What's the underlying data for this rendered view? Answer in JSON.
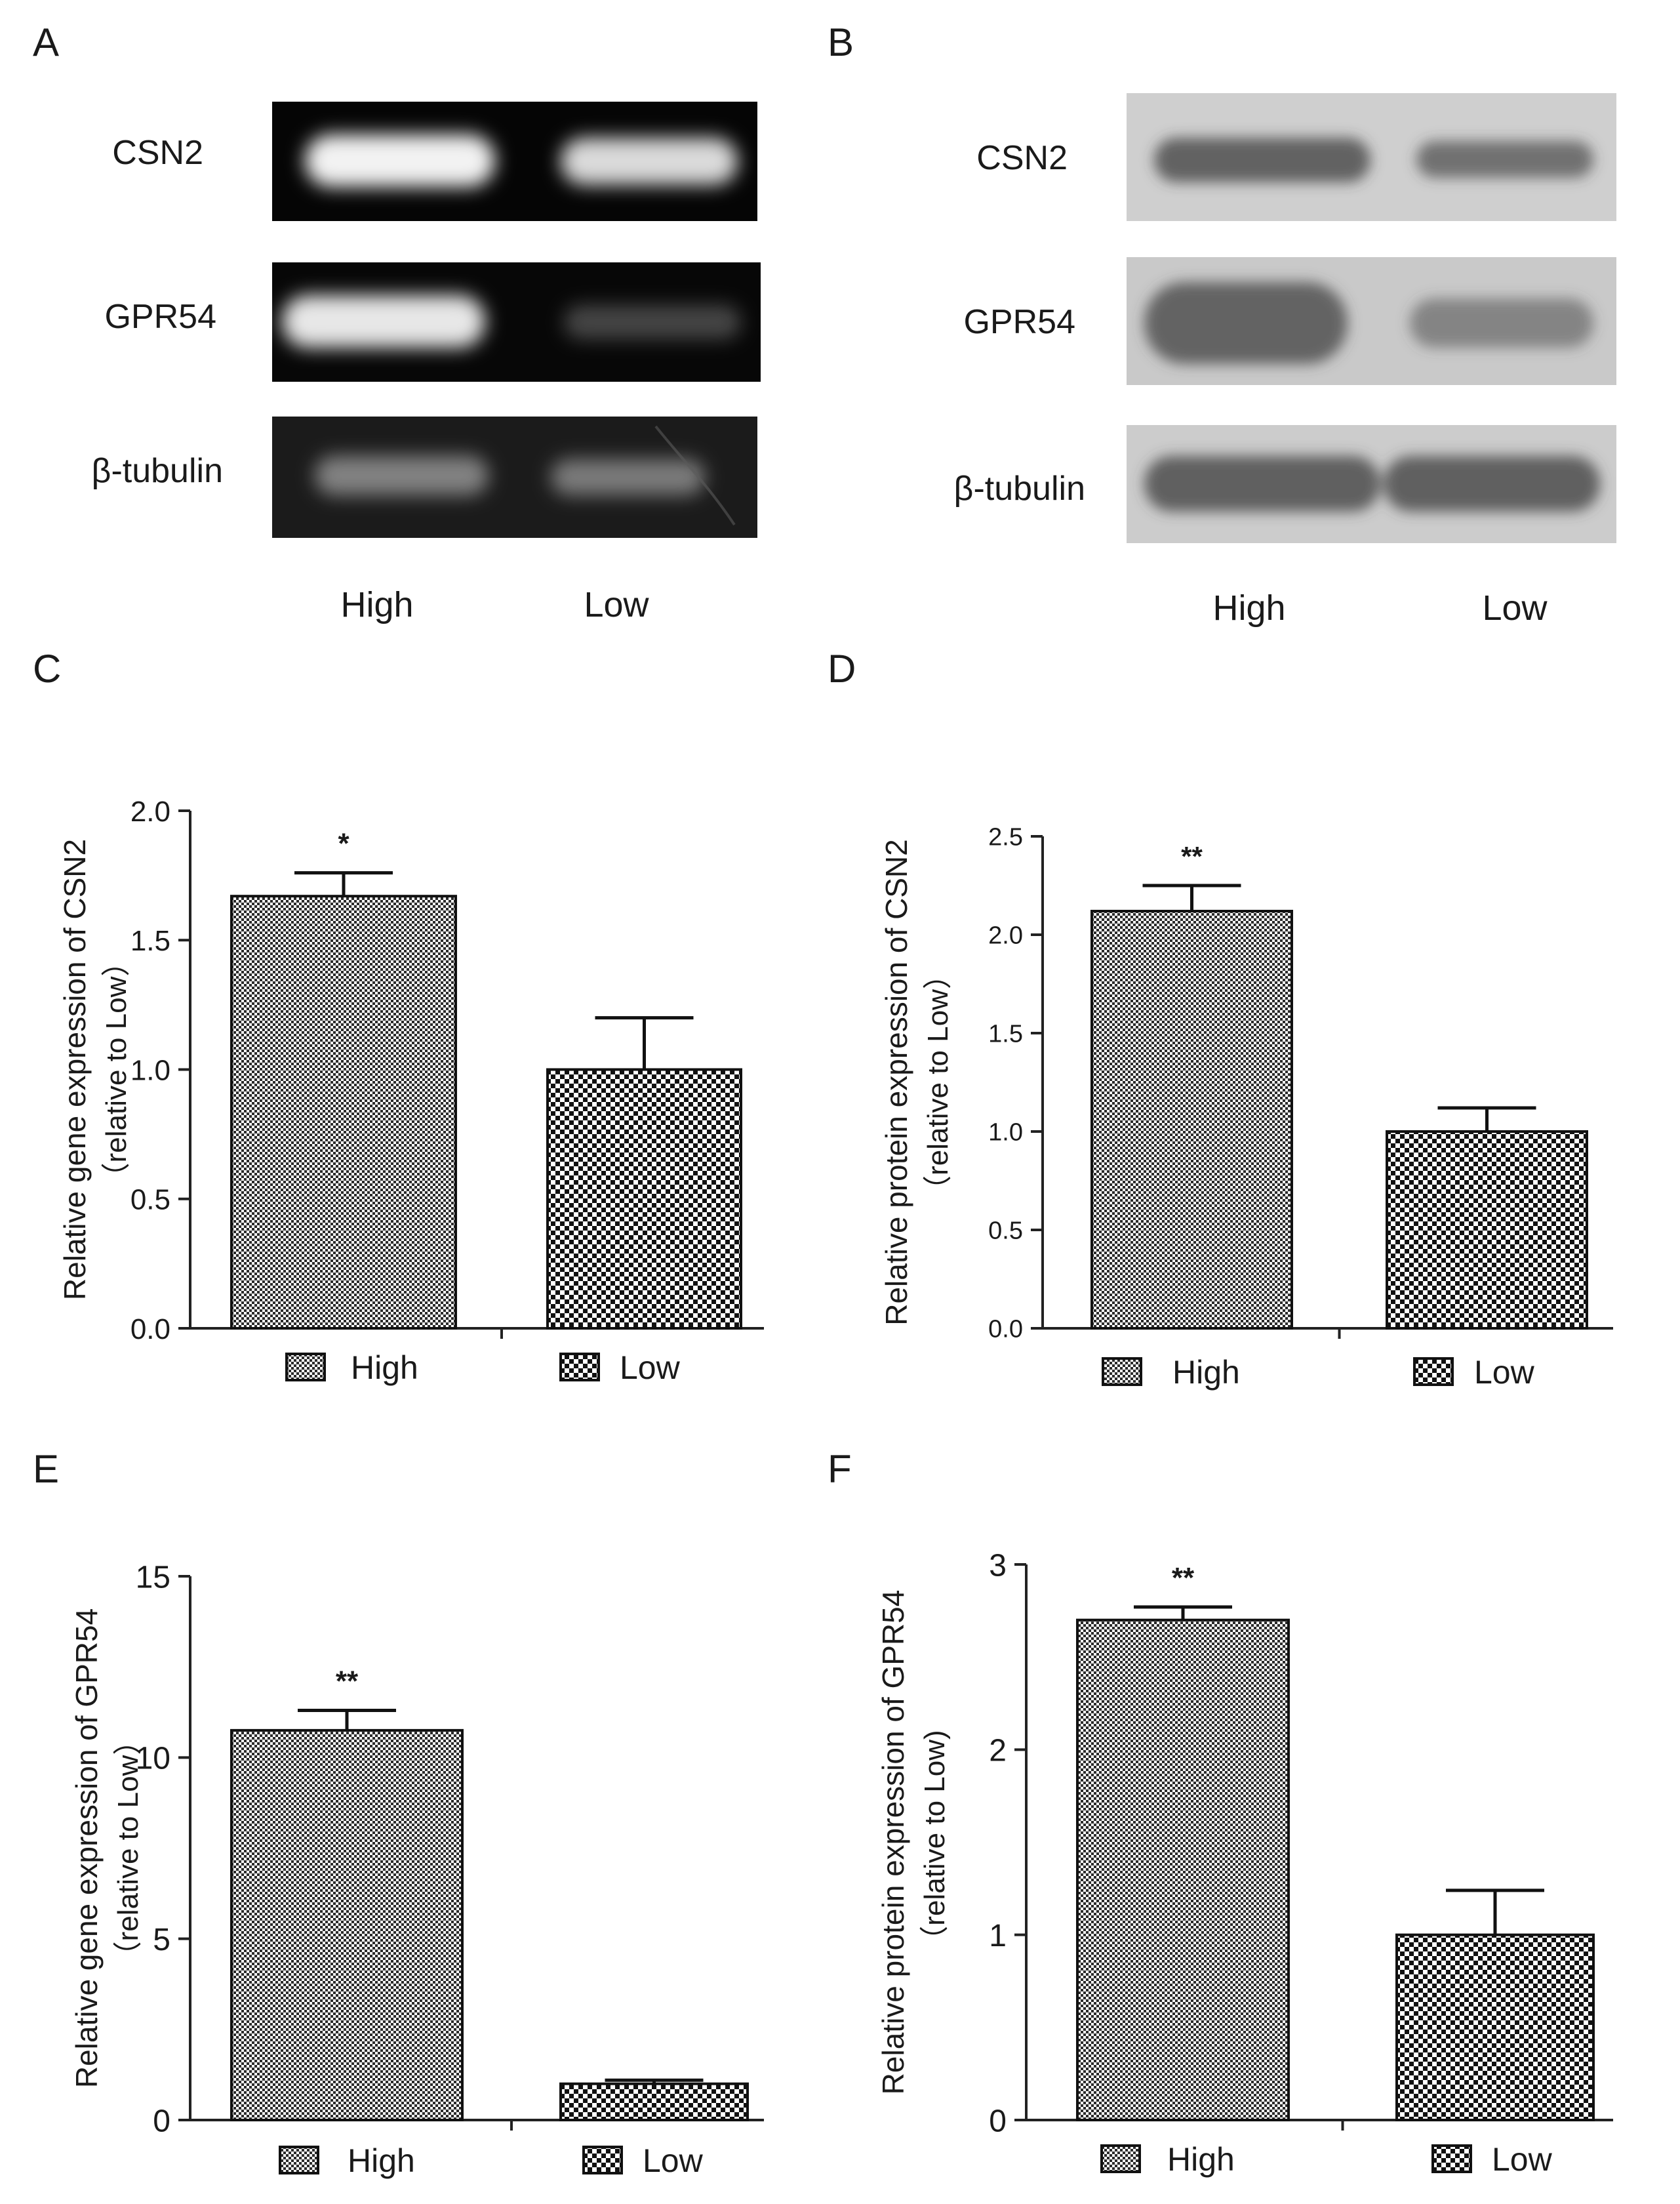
{
  "blots": [
    {
      "panel": "A",
      "style": "gel",
      "rows": [
        {
          "label": "CSN2",
          "intensity": [
            0.95,
            0.85
          ]
        },
        {
          "label": "GPR54",
          "intensity": [
            0.9,
            0.25
          ]
        },
        {
          "label": "β-tubulin",
          "intensity": [
            0.45,
            0.42
          ]
        }
      ],
      "lanes": [
        "High",
        "Low"
      ]
    },
    {
      "panel": "B",
      "style": "western",
      "rows": [
        {
          "label": "CSN2",
          "intensity": [
            0.75,
            0.65
          ]
        },
        {
          "label": "GPR54",
          "intensity": [
            0.8,
            0.55
          ]
        },
        {
          "label": "β-tubulin",
          "intensity": [
            0.8,
            0.8
          ]
        }
      ],
      "lanes": [
        "High",
        "Low"
      ]
    }
  ],
  "chart_data": [
    {
      "panel": "C",
      "type": "bar",
      "categories": [
        "High",
        "Low"
      ],
      "values": [
        1.67,
        1.0
      ],
      "errors": [
        0.09,
        0.2
      ],
      "significance": [
        "*",
        ""
      ],
      "ylabel": "Relative gene expression of CSN2",
      "ylabel_sub": "（relative to Low）",
      "ylim": [
        0,
        2.0
      ],
      "yticks": [
        0.0,
        0.5,
        1.0,
        1.5,
        2.0
      ],
      "ytick_labels": [
        "0.0",
        "0.5",
        "1.0",
        "1.5",
        "2.0"
      ],
      "legend": [
        {
          "label": "High",
          "pattern": "fine"
        },
        {
          "label": "Low",
          "pattern": "coarse"
        }
      ]
    },
    {
      "panel": "D",
      "type": "bar",
      "categories": [
        "High",
        "Low"
      ],
      "values": [
        2.12,
        1.0
      ],
      "errors": [
        0.13,
        0.12
      ],
      "significance": [
        "**",
        ""
      ],
      "ylabel": "Relative protein expression of CSN2",
      "ylabel_sub": "（relative to Low）",
      "ylim": [
        0,
        2.5
      ],
      "yticks": [
        0.0,
        0.5,
        1.0,
        1.5,
        2.0,
        2.5
      ],
      "ytick_labels": [
        "0.0",
        "0.5",
        "1.0",
        "1.5",
        "2.0",
        "2.5"
      ],
      "legend": [
        {
          "label": "High",
          "pattern": "fine"
        },
        {
          "label": "Low",
          "pattern": "coarse"
        }
      ]
    },
    {
      "panel": "E",
      "type": "bar",
      "categories": [
        "High",
        "Low"
      ],
      "values": [
        10.75,
        1.0
      ],
      "errors": [
        0.55,
        0.1
      ],
      "significance": [
        "**",
        ""
      ],
      "ylabel": "Relative gene expression of GPR54",
      "ylabel_sub": "（relative to Low）",
      "ylim": [
        0,
        15
      ],
      "yticks": [
        0,
        5,
        10,
        15
      ],
      "ytick_labels": [
        "0",
        "5",
        "10",
        "15"
      ],
      "legend": [
        {
          "label": "High",
          "pattern": "fine"
        },
        {
          "label": "Low",
          "pattern": "coarse"
        }
      ]
    },
    {
      "panel": "F",
      "type": "bar",
      "categories": [
        "High",
        "Low"
      ],
      "values": [
        2.7,
        1.0
      ],
      "errors": [
        0.07,
        0.24
      ],
      "significance": [
        "**",
        ""
      ],
      "ylabel": "Relative protein expression of GPR54",
      "ylabel_sub": "（relative to Low)",
      "ylim": [
        0,
        3
      ],
      "yticks": [
        0,
        1,
        2,
        3
      ],
      "ytick_labels": [
        "0",
        "1",
        "2",
        "3"
      ],
      "legend": [
        {
          "label": "High",
          "pattern": "fine"
        },
        {
          "label": "Low",
          "pattern": "coarse"
        }
      ]
    }
  ]
}
